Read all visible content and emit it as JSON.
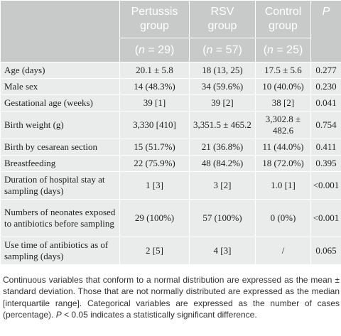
{
  "header": {
    "groups": [
      {
        "name_line1": "Pertussis",
        "name_line2": "group",
        "n": "29"
      },
      {
        "name_line1": "RSV",
        "name_line2": "group",
        "n": "57"
      },
      {
        "name_line1": "Control",
        "name_line2": "group",
        "n": "25"
      }
    ],
    "p_label": "P",
    "n_prefix": "(",
    "n_italic": "n",
    "n_equals": " = ",
    "n_suffix": ")"
  },
  "rows": [
    {
      "label": "Age (days)",
      "pertussis": "20.1 ± 5.8",
      "rsv": "18 (13, 25)",
      "control": "17.5 ± 5.6",
      "p": "0.277"
    },
    {
      "label": "Male sex",
      "pertussis": "14 (48.3%)",
      "rsv": "34 (59.6%)",
      "control": "10 (40.0%)",
      "p": "0.230"
    },
    {
      "label": "Gestational age (weeks)",
      "pertussis": "39 [1]",
      "rsv": "39 [2]",
      "control": "38 [2]",
      "p": "0.041"
    },
    {
      "label": "Birth weight (g)",
      "pertussis": "3,330 [410]",
      "rsv": "3,351.5 ± 465.2",
      "control": "3,302.8 ± 482.6",
      "p": "0.754"
    },
    {
      "label": "Birth by cesarean section",
      "pertussis": "15 (51.7%)",
      "rsv": "21 (36.8%)",
      "control": "11 (44.0%)",
      "p": "0.411"
    },
    {
      "label": "Breastfeeding",
      "pertussis": "22 (75.9%)",
      "rsv": "48 (84.2%)",
      "control": "18 (72.0%)",
      "p": "0.395"
    },
    {
      "label": "Duration of hospital stay at sampling (days)",
      "pertussis": "1 [3]",
      "rsv": "3 [2]",
      "control": "1.0 [1]",
      "p": "<0.001"
    },
    {
      "label": "Numbers of neonates exposed to antibiotics before sampling",
      "pertussis": "29 (100%)",
      "rsv": "57 (100%)",
      "control": "0 (0%)",
      "p": "<0.001"
    },
    {
      "label": "Use time of antibiotics as of sampling (days)",
      "pertussis": "2 [5]",
      "rsv": "4 [3]",
      "control": "/",
      "p": "0.065"
    }
  ],
  "note": {
    "part1": "Continuous variables that conform to a normal distribution are expressed as the mean ± standard deviation. Those that are not normally distributed are expressed as the median [interquartile range]. Categorical variables are expressed as the number of cases (percentage). ",
    "p_italic": "P",
    "part2": " < 0.05 indicates a statistically significant difference."
  },
  "colors": {
    "header_bg": "#c8c9c9",
    "body_bg": "#eaebeb",
    "border": "#ffffff"
  }
}
